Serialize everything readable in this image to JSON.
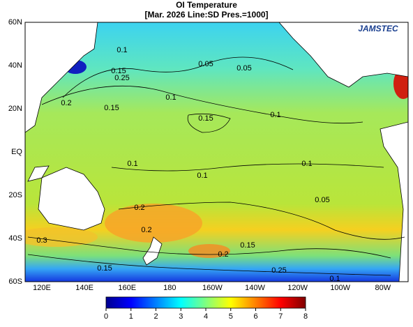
{
  "title": "OI Temperature",
  "subtitle": "[Mar. 2026  Line:SD  Pres.=1000]",
  "logo": "JAMSTEC",
  "lat_labels": [
    "60N",
    "40N",
    "20N",
    "EQ",
    "20S",
    "40S",
    "60S"
  ],
  "lon_labels": [
    "120E",
    "140E",
    "160E",
    "180",
    "160W",
    "140W",
    "120W",
    "100W",
    "80W"
  ],
  "colorbar": {
    "range": [
      0,
      8
    ],
    "ticks": [
      0,
      1,
      2,
      3,
      4,
      5,
      6,
      7,
      8
    ]
  },
  "contour_labels": [
    "0.1",
    "0.05",
    "0.05",
    "0.15",
    "0.25",
    "0.2",
    "0.15",
    "0.1",
    "0.15",
    "0.1",
    "0.1",
    "0.1",
    "0.05",
    "0.1",
    "0.2",
    "0.2",
    "0.15",
    "0.2",
    "0.25",
    "0.15",
    "0.1",
    "0.3"
  ]
}
